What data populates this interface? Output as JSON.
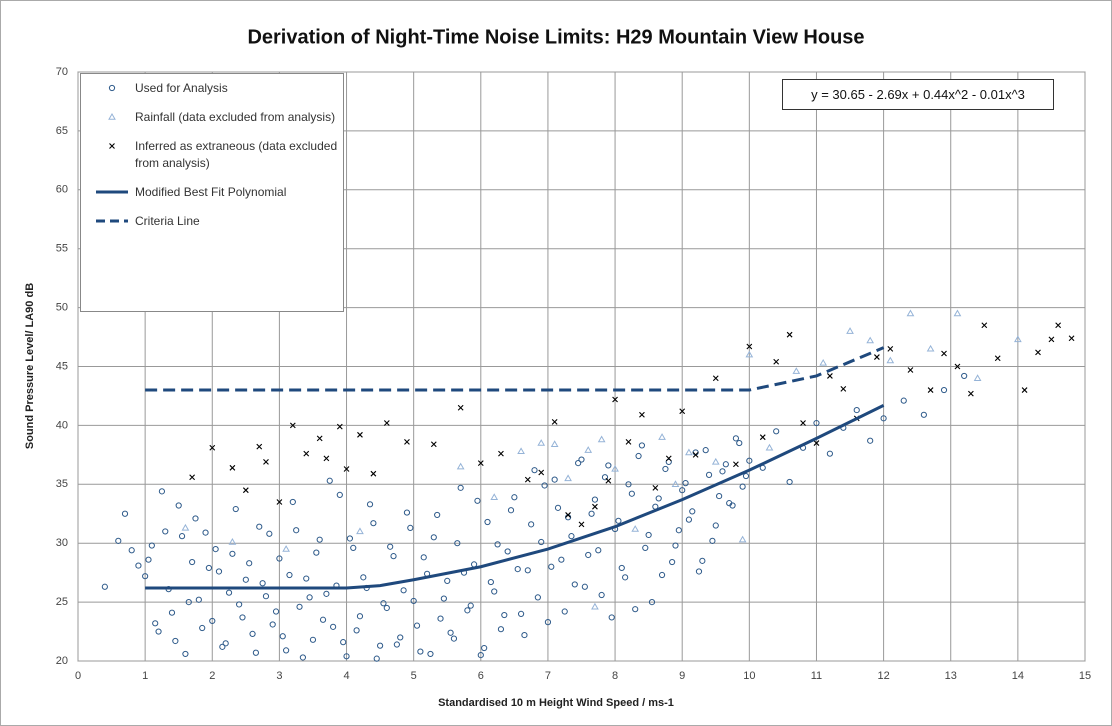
{
  "chart_data": {
    "type": "scatter",
    "title": "Derivation of Night-Time Noise Limits: H29 Mountain View House",
    "x_label": "Standardised 10 m Height Wind Speed / ms-1",
    "y_label": "Sound Pressure Level/ LA90 dB",
    "equation": "y = 30.65 - 2.69x + 0.44x^2 - 0.01x^3",
    "xlim": [
      0,
      15
    ],
    "xticks": [
      0,
      1,
      2,
      3,
      4,
      5,
      6,
      7,
      8,
      9,
      10,
      11,
      12,
      13,
      14,
      15
    ],
    "ylim": [
      20,
      70
    ],
    "yticks": [
      20,
      25,
      30,
      35,
      40,
      45,
      50,
      55,
      60,
      65,
      70
    ],
    "grid": true,
    "legend": "upper left",
    "series": [
      {
        "name": "Used for Analysis",
        "kind": "scatter",
        "marker": "circle",
        "color": "#2e5a8a",
        "x": [
          0.4,
          0.6,
          0.7,
          0.8,
          0.9,
          1.0,
          1.1,
          1.2,
          1.3,
          1.4,
          1.5,
          1.6,
          1.7,
          1.8,
          1.9,
          2.0,
          2.1,
          2.2,
          2.3,
          2.4,
          2.5,
          2.6,
          2.7,
          2.8,
          2.9,
          3.0,
          3.1,
          3.2,
          3.3,
          3.4,
          3.5,
          3.6,
          3.7,
          3.8,
          3.9,
          4.0,
          4.1,
          4.2,
          4.3,
          4.4,
          4.5,
          4.6,
          4.7,
          4.8,
          4.9,
          5.0,
          5.1,
          5.2,
          5.3,
          5.4,
          5.5,
          5.6,
          5.7,
          5.8,
          5.9,
          6.0,
          6.1,
          6.2,
          6.3,
          6.4,
          6.5,
          6.6,
          6.7,
          6.8,
          6.9,
          7.0,
          7.1,
          7.2,
          7.3,
          7.4,
          7.5,
          7.6,
          7.7,
          7.8,
          7.9,
          8.0,
          8.1,
          8.2,
          8.3,
          8.4,
          8.5,
          8.6,
          8.7,
          8.8,
          8.9,
          9.0,
          9.1,
          9.2,
          9.3,
          9.4,
          9.5,
          9.6,
          9.7,
          9.8,
          9.9,
          10.0,
          10.2,
          10.4,
          10.6,
          10.8,
          11.0,
          11.2,
          11.4,
          11.6,
          11.8,
          12.0,
          12.3,
          12.6,
          12.9,
          13.2,
          1.05,
          1.15,
          1.25,
          1.35,
          1.45,
          1.55,
          1.65,
          1.75,
          1.85,
          1.95,
          2.05,
          2.15,
          2.25,
          2.35,
          2.45,
          2.55,
          2.65,
          2.75,
          2.85,
          2.95,
          3.05,
          3.15,
          3.25,
          3.35,
          3.45,
          3.55,
          3.65,
          3.75,
          3.85,
          3.95,
          4.05,
          4.15,
          4.25,
          4.35,
          4.45,
          4.55,
          4.65,
          4.75,
          4.85,
          4.95,
          5.05,
          5.15,
          5.25,
          5.35,
          5.45,
          5.55,
          5.65,
          5.75,
          5.85,
          5.95,
          6.05,
          6.15,
          6.25,
          6.35,
          6.45,
          6.55,
          6.65,
          6.75,
          6.85,
          6.95,
          7.05,
          7.15,
          7.25,
          7.35,
          7.45,
          7.55,
          7.65,
          7.75,
          7.85,
          7.95,
          8.05,
          8.15,
          8.25,
          8.35,
          8.45,
          8.55,
          8.65,
          8.75,
          8.85,
          8.95,
          9.05,
          9.15,
          9.25,
          9.35,
          9.45,
          9.55,
          9.65,
          9.75,
          9.85,
          9.95
        ],
        "values": [
          26.3,
          30.2,
          32.5,
          29.4,
          28.1,
          27.2,
          29.8,
          22.5,
          31.0,
          24.1,
          33.2,
          20.6,
          28.4,
          25.2,
          30.9,
          23.4,
          27.6,
          21.5,
          29.1,
          24.8,
          26.9,
          22.3,
          31.4,
          25.5,
          23.1,
          28.7,
          20.9,
          33.5,
          24.6,
          27.0,
          21.8,
          30.3,
          25.7,
          22.9,
          34.1,
          20.4,
          29.6,
          23.8,
          26.2,
          31.7,
          21.3,
          24.5,
          28.9,
          22.0,
          32.6,
          25.1,
          20.8,
          27.4,
          30.5,
          23.6,
          26.8,
          21.9,
          34.7,
          24.3,
          28.2,
          20.5,
          31.8,
          25.9,
          22.7,
          29.3,
          33.9,
          24.0,
          27.7,
          36.2,
          30.1,
          23.3,
          35.4,
          28.6,
          32.2,
          26.5,
          37.1,
          29.0,
          33.7,
          25.6,
          36.6,
          31.2,
          27.9,
          35.0,
          24.4,
          38.3,
          30.7,
          33.1,
          27.3,
          36.9,
          29.8,
          34.5,
          32.0,
          37.7,
          28.5,
          35.8,
          31.5,
          36.1,
          33.4,
          38.9,
          34.8,
          37.0,
          36.4,
          39.5,
          35.2,
          38.1,
          40.2,
          37.6,
          39.8,
          41.3,
          38.7,
          40.6,
          42.1,
          40.9,
          43.0,
          44.2,
          28.6,
          23.2,
          34.4,
          26.1,
          21.7,
          30.6,
          25.0,
          32.1,
          22.8,
          27.9,
          29.5,
          21.2,
          25.8,
          32.9,
          23.7,
          28.3,
          20.7,
          26.6,
          30.8,
          24.2,
          22.1,
          27.3,
          31.1,
          20.3,
          25.4,
          29.2,
          23.5,
          35.3,
          26.4,
          21.6,
          30.4,
          22.6,
          27.1,
          33.3,
          20.2,
          24.9,
          29.7,
          21.4,
          26.0,
          31.3,
          23.0,
          28.8,
          20.6,
          32.4,
          25.3,
          22.4,
          30.0,
          27.5,
          24.7,
          33.6,
          21.1,
          26.7,
          29.9,
          23.9,
          32.8,
          27.8,
          22.2,
          31.6,
          25.4,
          34.9,
          28.0,
          33.0,
          24.2,
          30.6,
          36.8,
          26.3,
          32.5,
          29.4,
          35.6,
          23.7,
          31.9,
          27.1,
          34.2,
          37.4,
          29.6,
          25.0,
          33.8,
          36.3,
          28.4,
          31.1,
          35.1,
          32.7,
          27.6,
          37.9,
          30.2,
          34.0,
          36.7,
          33.2,
          38.5,
          35.7
        ]
      },
      {
        "name": "Rainfall (data excluded from analysis)",
        "kind": "scatter",
        "marker": "triangle",
        "color": "#95b3d7",
        "x": [
          1.6,
          2.3,
          3.1,
          4.2,
          5.7,
          6.2,
          6.6,
          6.9,
          7.1,
          7.3,
          7.6,
          7.8,
          8.0,
          8.3,
          8.7,
          9.1,
          9.5,
          9.9,
          10.0,
          10.3,
          10.7,
          11.1,
          11.5,
          11.8,
          12.1,
          12.4,
          12.7,
          13.1,
          13.4,
          14.0,
          8.9,
          7.7
        ],
        "values": [
          31.3,
          30.1,
          29.5,
          31.0,
          36.5,
          33.9,
          37.8,
          38.5,
          38.4,
          35.5,
          37.9,
          38.8,
          36.3,
          31.2,
          39.0,
          37.7,
          36.9,
          30.3,
          46.0,
          38.1,
          44.6,
          45.3,
          48.0,
          47.2,
          45.5,
          49.5,
          46.5,
          49.5,
          44.0,
          47.3,
          35.0,
          24.6
        ]
      },
      {
        "name": "Inferred as extraneous (data excluded from analysis)",
        "kind": "scatter",
        "marker": "cross",
        "color": "#000000",
        "x": [
          1.7,
          2.0,
          2.3,
          2.5,
          2.7,
          2.8,
          3.0,
          3.2,
          3.4,
          3.6,
          3.7,
          3.9,
          4.0,
          4.2,
          4.4,
          4.6,
          4.9,
          5.3,
          5.7,
          6.0,
          6.3,
          6.7,
          6.9,
          7.1,
          7.3,
          7.5,
          7.7,
          7.9,
          8.0,
          8.2,
          8.4,
          8.6,
          8.8,
          9.0,
          9.2,
          9.5,
          9.8,
          10.0,
          10.2,
          10.4,
          10.6,
          10.8,
          11.0,
          11.2,
          11.4,
          11.6,
          11.9,
          12.1,
          12.4,
          12.7,
          12.9,
          13.1,
          13.3,
          13.5,
          13.7,
          14.1,
          14.3,
          14.5,
          14.6,
          14.8
        ],
        "values": [
          35.6,
          38.1,
          36.4,
          34.5,
          38.2,
          36.9,
          33.5,
          40.0,
          37.6,
          38.9,
          37.2,
          39.9,
          36.3,
          39.2,
          35.9,
          40.2,
          38.6,
          38.4,
          41.5,
          36.8,
          37.6,
          35.4,
          36.0,
          40.3,
          32.4,
          31.6,
          33.1,
          35.3,
          42.2,
          38.6,
          40.9,
          34.7,
          37.2,
          41.2,
          37.5,
          44.0,
          36.7,
          46.7,
          39.0,
          45.4,
          47.7,
          40.2,
          38.5,
          44.2,
          43.1,
          40.6,
          45.8,
          46.5,
          44.7,
          43.0,
          46.1,
          45.0,
          42.7,
          48.5,
          45.7,
          43.0,
          46.2,
          47.3,
          48.5,
          47.4
        ]
      },
      {
        "name": "Modified Best Fit Polynomial",
        "kind": "line",
        "dash": false,
        "color": "#1f497d",
        "x": [
          1,
          2,
          3,
          4,
          4.5,
          5,
          6,
          7,
          8,
          9,
          10,
          11,
          12
        ],
        "values": [
          26.2,
          26.2,
          26.2,
          26.2,
          26.4,
          26.9,
          28.0,
          29.5,
          31.4,
          33.7,
          36.2,
          38.9,
          41.7
        ]
      },
      {
        "name": "Criteria Line",
        "kind": "line",
        "dash": true,
        "color": "#1f497d",
        "x": [
          1,
          10,
          11,
          12
        ],
        "values": [
          43,
          43,
          44.2,
          46.6
        ]
      }
    ]
  }
}
